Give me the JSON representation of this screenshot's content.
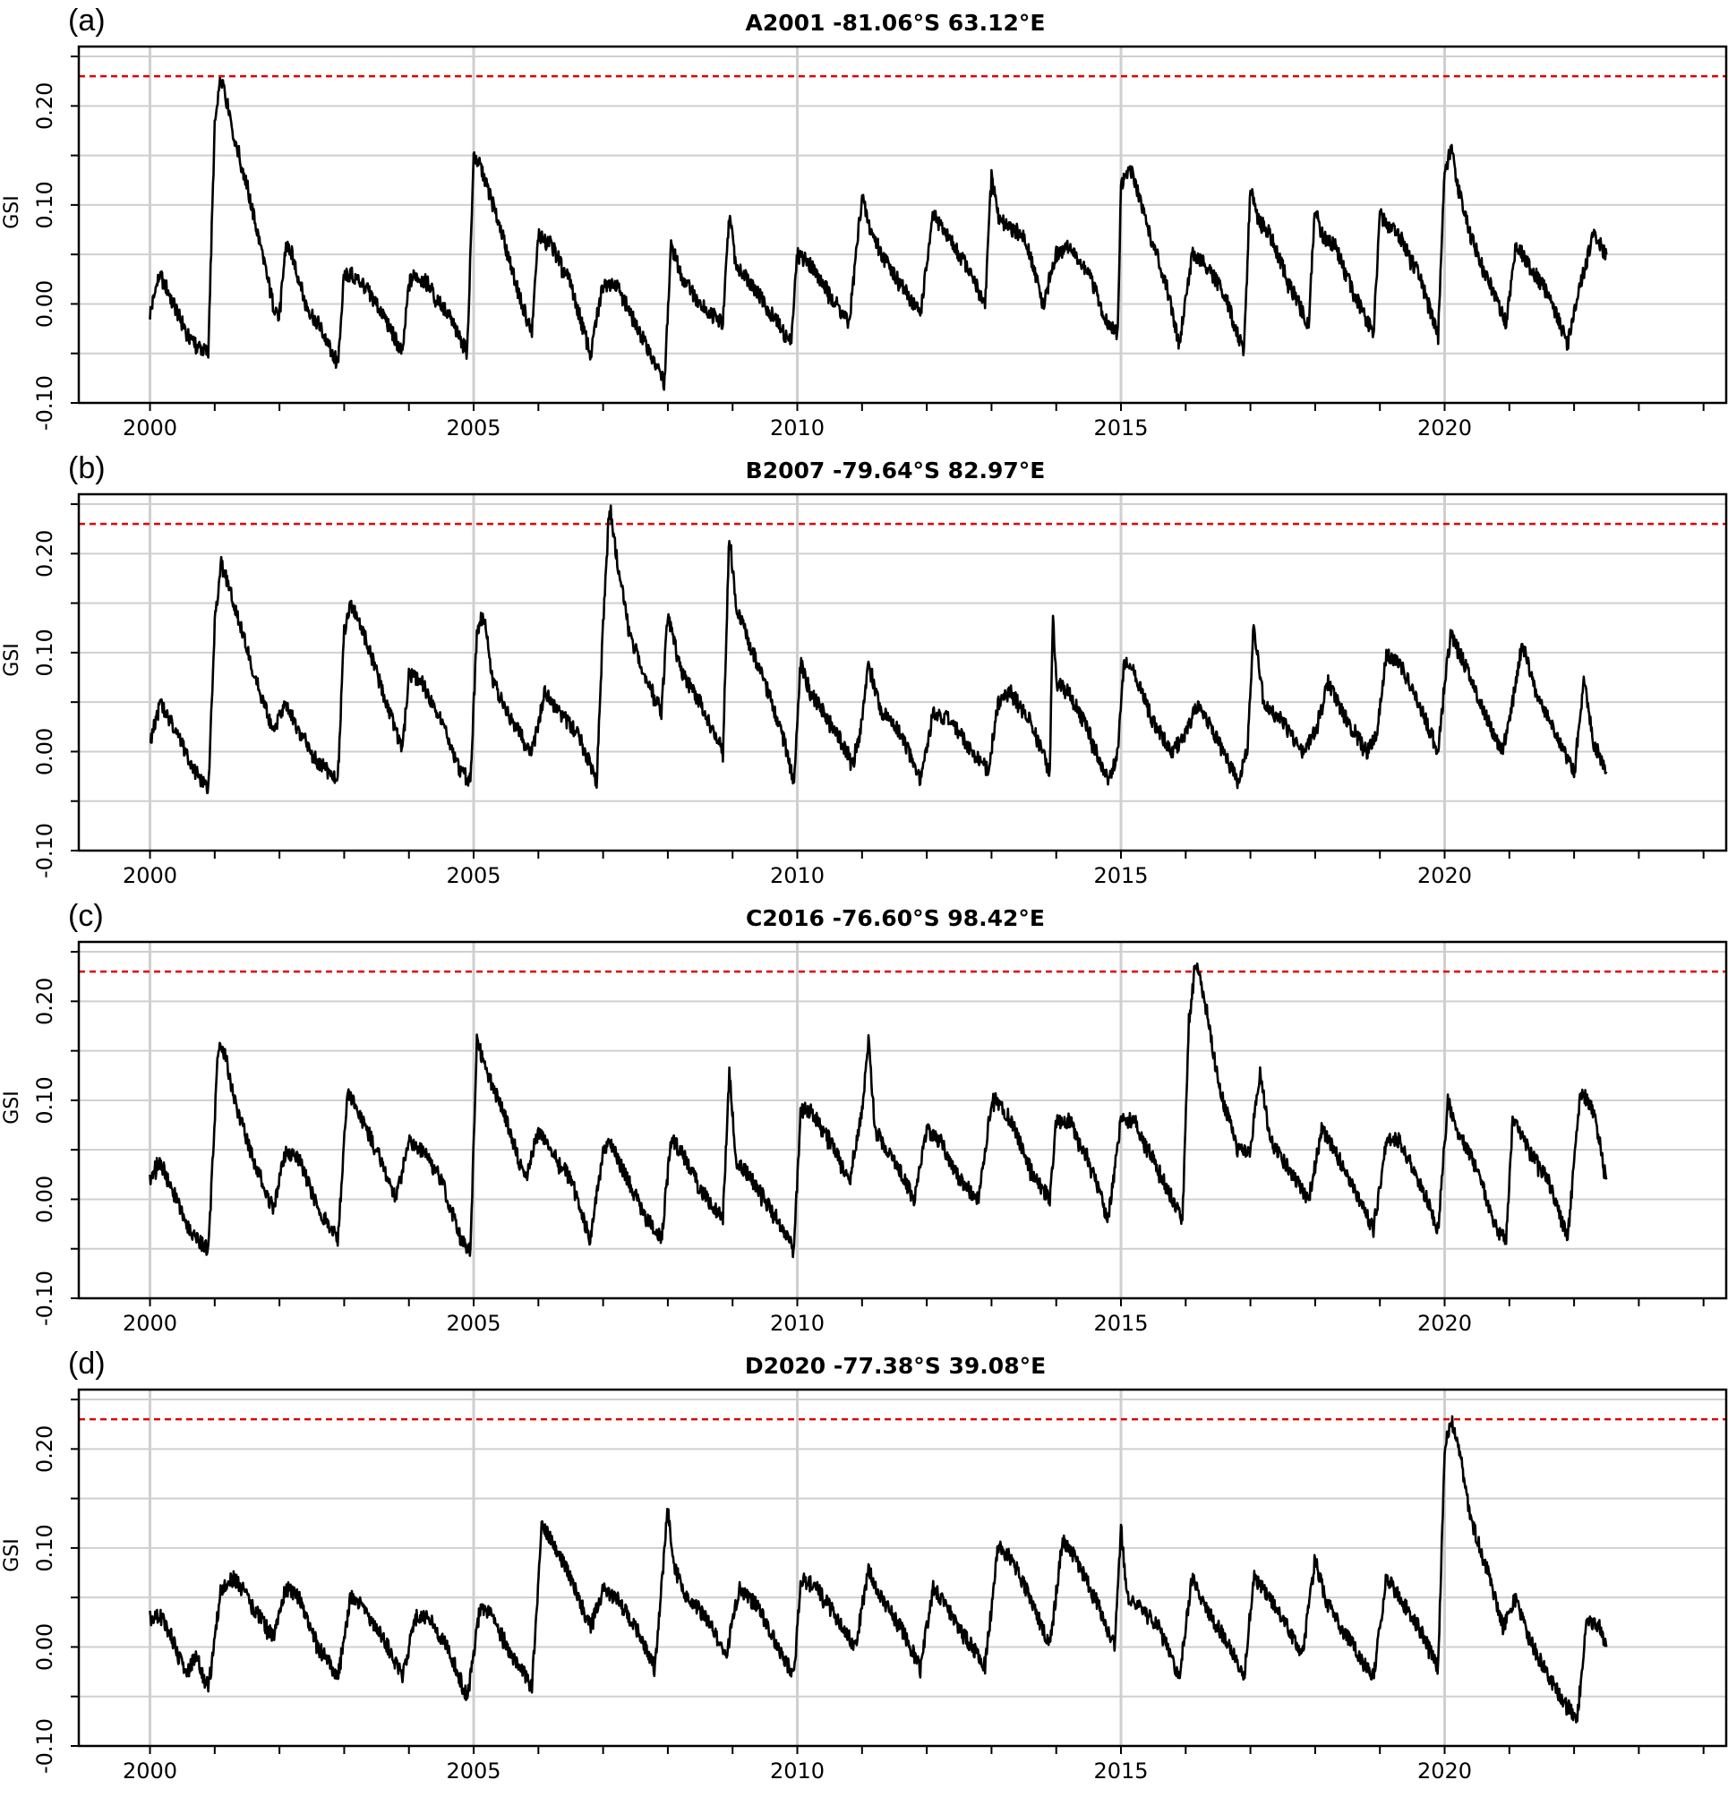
{
  "chart_data": [
    {
      "type": "line",
      "panel_label": "(a)",
      "title": "A2001 -81.06°S 63.12°E",
      "xlabel": "",
      "ylabel": "GSI",
      "xlim": [
        1998.9,
        2024.35
      ],
      "ylim": [
        -0.1,
        0.26
      ],
      "x_ticks": [
        "2000",
        "2005",
        "2010",
        "2015",
        "2020"
      ],
      "y_ticks": [
        "-0.10",
        "0.00",
        "0.10",
        "0.20"
      ],
      "threshold": 0.23,
      "threshold_color": "#e00000",
      "line_color": "#000000",
      "grid": true,
      "series": [
        {
          "x": [
            2000.0,
            2000.15,
            2000.3,
            2000.5,
            2000.7,
            2000.9,
            2001.0,
            2001.1,
            2001.2,
            2001.3,
            2001.5,
            2001.7,
            2001.9,
            2002.0,
            2002.1,
            2002.2,
            2002.4,
            2002.6,
            2002.9,
            2003.0,
            2003.1,
            2003.3,
            2003.6,
            2003.9,
            2004.0,
            2004.1,
            2004.3,
            2004.6,
            2004.9,
            2005.0,
            2005.1,
            2005.2,
            2005.4,
            2005.7,
            2005.9,
            2006.0,
            2006.2,
            2006.5,
            2006.8,
            2007.0,
            2007.2,
            2007.5,
            2007.8,
            2007.95,
            2008.05,
            2008.2,
            2008.5,
            2008.85,
            2008.95,
            2009.05,
            2009.3,
            2009.6,
            2009.9,
            2010.0,
            2010.2,
            2010.5,
            2010.8,
            2011.0,
            2011.1,
            2011.3,
            2011.6,
            2011.9,
            2012.1,
            2012.3,
            2012.6,
            2012.9,
            2013.0,
            2013.1,
            2013.2,
            2013.5,
            2013.8,
            2014.0,
            2014.2,
            2014.5,
            2014.8,
            2014.95,
            2015.0,
            2015.15,
            2015.4,
            2015.7,
            2015.9,
            2016.1,
            2016.3,
            2016.6,
            2016.9,
            2017.0,
            2017.1,
            2017.3,
            2017.6,
            2017.9,
            2018.0,
            2018.1,
            2018.3,
            2018.6,
            2018.9,
            2019.0,
            2019.1,
            2019.3,
            2019.6,
            2019.9,
            2020.0,
            2020.1,
            2020.2,
            2020.4,
            2020.7,
            2020.95,
            2021.1,
            2021.3,
            2021.6,
            2021.9,
            2022.1,
            2022.3,
            2022.5
          ],
          "y": [
            -0.01,
            0.03,
            0.01,
            -0.02,
            -0.04,
            -0.05,
            0.18,
            0.23,
            0.2,
            0.17,
            0.12,
            0.06,
            0.0,
            -0.01,
            0.06,
            0.05,
            0.0,
            -0.02,
            -0.06,
            0.03,
            0.03,
            0.02,
            -0.01,
            -0.05,
            0.02,
            0.03,
            0.02,
            -0.01,
            -0.05,
            0.15,
            0.14,
            0.12,
            0.08,
            0.01,
            -0.03,
            0.07,
            0.06,
            0.02,
            -0.05,
            0.02,
            0.02,
            -0.02,
            -0.06,
            -0.08,
            0.06,
            0.03,
            0.0,
            -0.02,
            0.09,
            0.04,
            0.02,
            -0.01,
            -0.04,
            0.05,
            0.04,
            0.01,
            -0.02,
            0.11,
            0.08,
            0.05,
            0.02,
            -0.01,
            0.09,
            0.07,
            0.04,
            0.0,
            0.13,
            0.09,
            0.08,
            0.07,
            0.0,
            0.05,
            0.06,
            0.03,
            -0.02,
            -0.03,
            0.12,
            0.14,
            0.08,
            0.02,
            -0.04,
            0.05,
            0.04,
            0.01,
            -0.05,
            0.12,
            0.09,
            0.07,
            0.02,
            -0.02,
            0.1,
            0.07,
            0.06,
            0.01,
            -0.03,
            0.09,
            0.08,
            0.07,
            0.03,
            -0.03,
            0.13,
            0.16,
            0.12,
            0.07,
            0.02,
            -0.02,
            0.06,
            0.04,
            0.01,
            -0.04,
            0.02,
            0.07,
            0.05
          ]
        }
      ]
    },
    {
      "type": "line",
      "panel_label": "(b)",
      "title": "B2007 -79.64°S 82.97°E",
      "xlabel": "",
      "ylabel": "GSI",
      "xlim": [
        1998.9,
        2024.35
      ],
      "ylim": [
        -0.1,
        0.26
      ],
      "x_ticks": [
        "2000",
        "2005",
        "2010",
        "2015",
        "2020"
      ],
      "y_ticks": [
        "-0.10",
        "0.00",
        "0.10",
        "0.20"
      ],
      "threshold": 0.23,
      "threshold_color": "#e00000",
      "line_color": "#000000",
      "grid": true,
      "series": [
        {
          "x": [
            2000.0,
            2000.15,
            2000.4,
            2000.7,
            2000.9,
            2001.0,
            2001.1,
            2001.3,
            2001.6,
            2001.9,
            2002.1,
            2002.3,
            2002.6,
            2002.9,
            2003.0,
            2003.1,
            2003.3,
            2003.6,
            2003.9,
            2004.0,
            2004.2,
            2004.5,
            2004.8,
            2004.95,
            2005.05,
            2005.15,
            2005.3,
            2005.6,
            2005.9,
            2006.1,
            2006.3,
            2006.6,
            2006.9,
            2007.0,
            2007.1,
            2007.2,
            2007.4,
            2007.7,
            2007.9,
            2008.0,
            2008.2,
            2008.5,
            2008.85,
            2008.95,
            2009.05,
            2009.2,
            2009.5,
            2009.8,
            2009.95,
            2010.05,
            2010.2,
            2010.5,
            2010.85,
            2010.95,
            2011.1,
            2011.3,
            2011.6,
            2011.9,
            2012.1,
            2012.4,
            2012.7,
            2012.95,
            2013.1,
            2013.3,
            2013.6,
            2013.9,
            2013.95,
            2014.0,
            2014.2,
            2014.5,
            2014.8,
            2014.95,
            2015.05,
            2015.2,
            2015.5,
            2015.8,
            2016.0,
            2016.2,
            2016.5,
            2016.8,
            2016.95,
            2017.05,
            2017.2,
            2017.5,
            2017.8,
            2018.0,
            2018.2,
            2018.5,
            2018.8,
            2018.95,
            2019.1,
            2019.3,
            2019.6,
            2019.9,
            2020.0,
            2020.1,
            2020.3,
            2020.6,
            2020.9,
            2021.05,
            2021.2,
            2021.4,
            2021.7,
            2022.0,
            2022.15,
            2022.3,
            2022.5
          ],
          "y": [
            0.01,
            0.05,
            0.02,
            -0.02,
            -0.04,
            0.13,
            0.19,
            0.15,
            0.08,
            0.02,
            0.05,
            0.02,
            -0.01,
            -0.03,
            0.12,
            0.15,
            0.12,
            0.06,
            0.0,
            0.08,
            0.07,
            0.03,
            -0.02,
            -0.03,
            0.12,
            0.14,
            0.07,
            0.03,
            0.0,
            0.06,
            0.04,
            0.02,
            -0.03,
            0.13,
            0.25,
            0.2,
            0.12,
            0.07,
            0.04,
            0.14,
            0.08,
            0.05,
            0.0,
            0.22,
            0.15,
            0.12,
            0.07,
            0.01,
            -0.03,
            0.09,
            0.06,
            0.03,
            -0.01,
            0.01,
            0.09,
            0.04,
            0.02,
            -0.03,
            0.04,
            0.03,
            0.0,
            -0.02,
            0.05,
            0.06,
            0.03,
            -0.02,
            0.14,
            0.07,
            0.06,
            0.02,
            -0.03,
            0.0,
            0.09,
            0.08,
            0.03,
            0.0,
            0.02,
            0.05,
            0.01,
            -0.03,
            0.0,
            0.13,
            0.05,
            0.03,
            0.0,
            0.02,
            0.07,
            0.03,
            0.0,
            0.02,
            0.1,
            0.09,
            0.05,
            0.0,
            0.07,
            0.12,
            0.09,
            0.04,
            0.0,
            0.05,
            0.11,
            0.06,
            0.02,
            -0.02,
            0.07,
            0.01,
            -0.02
          ]
        }
      ]
    },
    {
      "type": "line",
      "panel_label": "(c)",
      "title": "C2016 -76.60°S 98.42°E",
      "xlabel": "",
      "ylabel": "GSI",
      "xlim": [
        1998.9,
        2024.35
      ],
      "ylim": [
        -0.1,
        0.26
      ],
      "x_ticks": [
        "2000",
        "2005",
        "2010",
        "2015",
        "2020"
      ],
      "y_ticks": [
        "-0.10",
        "0.00",
        "0.10",
        "0.20"
      ],
      "threshold": 0.23,
      "threshold_color": "#e00000",
      "line_color": "#000000",
      "grid": true,
      "series": [
        {
          "x": [
            2000.0,
            2000.15,
            2000.4,
            2000.7,
            2000.9,
            2001.05,
            2001.15,
            2001.3,
            2001.6,
            2001.9,
            2002.1,
            2002.3,
            2002.6,
            2002.9,
            2003.05,
            2003.2,
            2003.5,
            2003.8,
            2004.0,
            2004.2,
            2004.5,
            2004.8,
            2004.95,
            2005.05,
            2005.2,
            2005.5,
            2005.8,
            2006.0,
            2006.2,
            2006.5,
            2006.8,
            2007.0,
            2007.1,
            2007.3,
            2007.6,
            2007.9,
            2008.05,
            2008.2,
            2008.5,
            2008.85,
            2008.95,
            2009.05,
            2009.3,
            2009.6,
            2009.95,
            2010.05,
            2010.2,
            2010.5,
            2010.8,
            2011.0,
            2011.1,
            2011.2,
            2011.5,
            2011.8,
            2012.0,
            2012.2,
            2012.5,
            2012.8,
            2013.0,
            2013.1,
            2013.3,
            2013.6,
            2013.9,
            2014.0,
            2014.2,
            2014.5,
            2014.8,
            2015.0,
            2015.2,
            2015.5,
            2015.8,
            2015.95,
            2016.05,
            2016.15,
            2016.3,
            2016.5,
            2016.8,
            2017.0,
            2017.15,
            2017.3,
            2017.6,
            2017.9,
            2018.1,
            2018.3,
            2018.6,
            2018.9,
            2019.1,
            2019.3,
            2019.6,
            2019.9,
            2020.05,
            2020.2,
            2020.5,
            2020.8,
            2020.95,
            2021.05,
            2021.3,
            2021.6,
            2021.9,
            2022.1,
            2022.3,
            2022.5
          ],
          "y": [
            0.02,
            0.04,
            0.0,
            -0.04,
            -0.05,
            0.15,
            0.15,
            0.1,
            0.04,
            -0.01,
            0.05,
            0.04,
            -0.01,
            -0.04,
            0.11,
            0.09,
            0.05,
            0.0,
            0.06,
            0.05,
            0.02,
            -0.04,
            -0.05,
            0.16,
            0.13,
            0.08,
            0.02,
            0.07,
            0.05,
            0.02,
            -0.04,
            0.05,
            0.06,
            0.03,
            -0.01,
            -0.04,
            0.06,
            0.05,
            0.01,
            -0.02,
            0.13,
            0.04,
            0.02,
            -0.01,
            -0.05,
            0.09,
            0.09,
            0.06,
            0.02,
            0.09,
            0.16,
            0.07,
            0.04,
            0.0,
            0.07,
            0.06,
            0.02,
            0.0,
            0.1,
            0.1,
            0.08,
            0.03,
            0.0,
            0.08,
            0.08,
            0.04,
            -0.02,
            0.08,
            0.08,
            0.04,
            0.0,
            -0.02,
            0.18,
            0.24,
            0.2,
            0.12,
            0.05,
            0.05,
            0.13,
            0.06,
            0.03,
            0.0,
            0.07,
            0.05,
            0.01,
            -0.03,
            0.06,
            0.06,
            0.02,
            -0.03,
            0.1,
            0.07,
            0.03,
            -0.03,
            -0.04,
            0.08,
            0.05,
            0.02,
            -0.04,
            0.11,
            0.09,
            0.02
          ]
        }
      ]
    },
    {
      "type": "line",
      "panel_label": "(d)",
      "title": "D2020 -77.38°S 39.08°E",
      "xlabel": "",
      "ylabel": "GSI",
      "xlim": [
        1998.9,
        2024.35
      ],
      "ylim": [
        -0.1,
        0.26
      ],
      "x_ticks": [
        "2000",
        "2005",
        "2010",
        "2015",
        "2020"
      ],
      "y_ticks": [
        "-0.10",
        "0.00",
        "0.10",
        "0.20"
      ],
      "threshold": 0.23,
      "threshold_color": "#e00000",
      "line_color": "#000000",
      "grid": true,
      "series": [
        {
          "x": [
            2000.0,
            2000.2,
            2000.4,
            2000.55,
            2000.7,
            2000.9,
            2001.1,
            2001.3,
            2001.6,
            2001.9,
            2002.1,
            2002.3,
            2002.6,
            2002.9,
            2003.1,
            2003.3,
            2003.6,
            2003.9,
            2004.1,
            2004.3,
            2004.6,
            2004.9,
            2005.1,
            2005.3,
            2005.6,
            2005.9,
            2006.05,
            2006.2,
            2006.5,
            2006.8,
            2007.0,
            2007.2,
            2007.5,
            2007.8,
            2008.0,
            2008.1,
            2008.3,
            2008.6,
            2008.9,
            2009.1,
            2009.4,
            2009.7,
            2009.95,
            2010.05,
            2010.3,
            2010.6,
            2010.9,
            2011.1,
            2011.3,
            2011.6,
            2011.9,
            2012.1,
            2012.3,
            2012.6,
            2012.9,
            2013.1,
            2013.3,
            2013.6,
            2013.9,
            2014.1,
            2014.3,
            2014.6,
            2014.9,
            2015.0,
            2015.1,
            2015.3,
            2015.6,
            2015.9,
            2016.1,
            2016.3,
            2016.6,
            2016.9,
            2017.05,
            2017.2,
            2017.5,
            2017.8,
            2018.0,
            2018.15,
            2018.3,
            2018.6,
            2018.9,
            2019.1,
            2019.3,
            2019.6,
            2019.9,
            2020.0,
            2020.1,
            2020.2,
            2020.4,
            2020.7,
            2020.9,
            2021.1,
            2021.3,
            2021.6,
            2021.9,
            2022.05,
            2022.2,
            2022.4,
            2022.5
          ],
          "y": [
            0.03,
            0.03,
            0.0,
            -0.03,
            -0.01,
            -0.04,
            0.06,
            0.07,
            0.04,
            0.01,
            0.06,
            0.05,
            0.0,
            -0.03,
            0.05,
            0.04,
            0.01,
            -0.03,
            0.03,
            0.03,
            0.0,
            -0.05,
            0.04,
            0.03,
            -0.01,
            -0.04,
            0.12,
            0.11,
            0.07,
            0.02,
            0.06,
            0.05,
            0.02,
            -0.02,
            0.14,
            0.08,
            0.05,
            0.03,
            -0.01,
            0.06,
            0.04,
            0.0,
            -0.03,
            0.07,
            0.06,
            0.03,
            0.0,
            0.08,
            0.05,
            0.02,
            -0.02,
            0.06,
            0.04,
            0.01,
            -0.02,
            0.1,
            0.09,
            0.05,
            0.0,
            0.11,
            0.09,
            0.05,
            0.0,
            0.12,
            0.05,
            0.04,
            0.02,
            -0.03,
            0.07,
            0.04,
            0.01,
            -0.03,
            0.07,
            0.06,
            0.03,
            -0.01,
            0.09,
            0.05,
            0.03,
            0.0,
            -0.03,
            0.07,
            0.05,
            0.02,
            -0.02,
            0.2,
            0.23,
            0.21,
            0.13,
            0.07,
            0.02,
            0.05,
            0.01,
            -0.03,
            -0.06,
            -0.07,
            0.03,
            0.02,
            0.0
          ]
        }
      ]
    }
  ]
}
